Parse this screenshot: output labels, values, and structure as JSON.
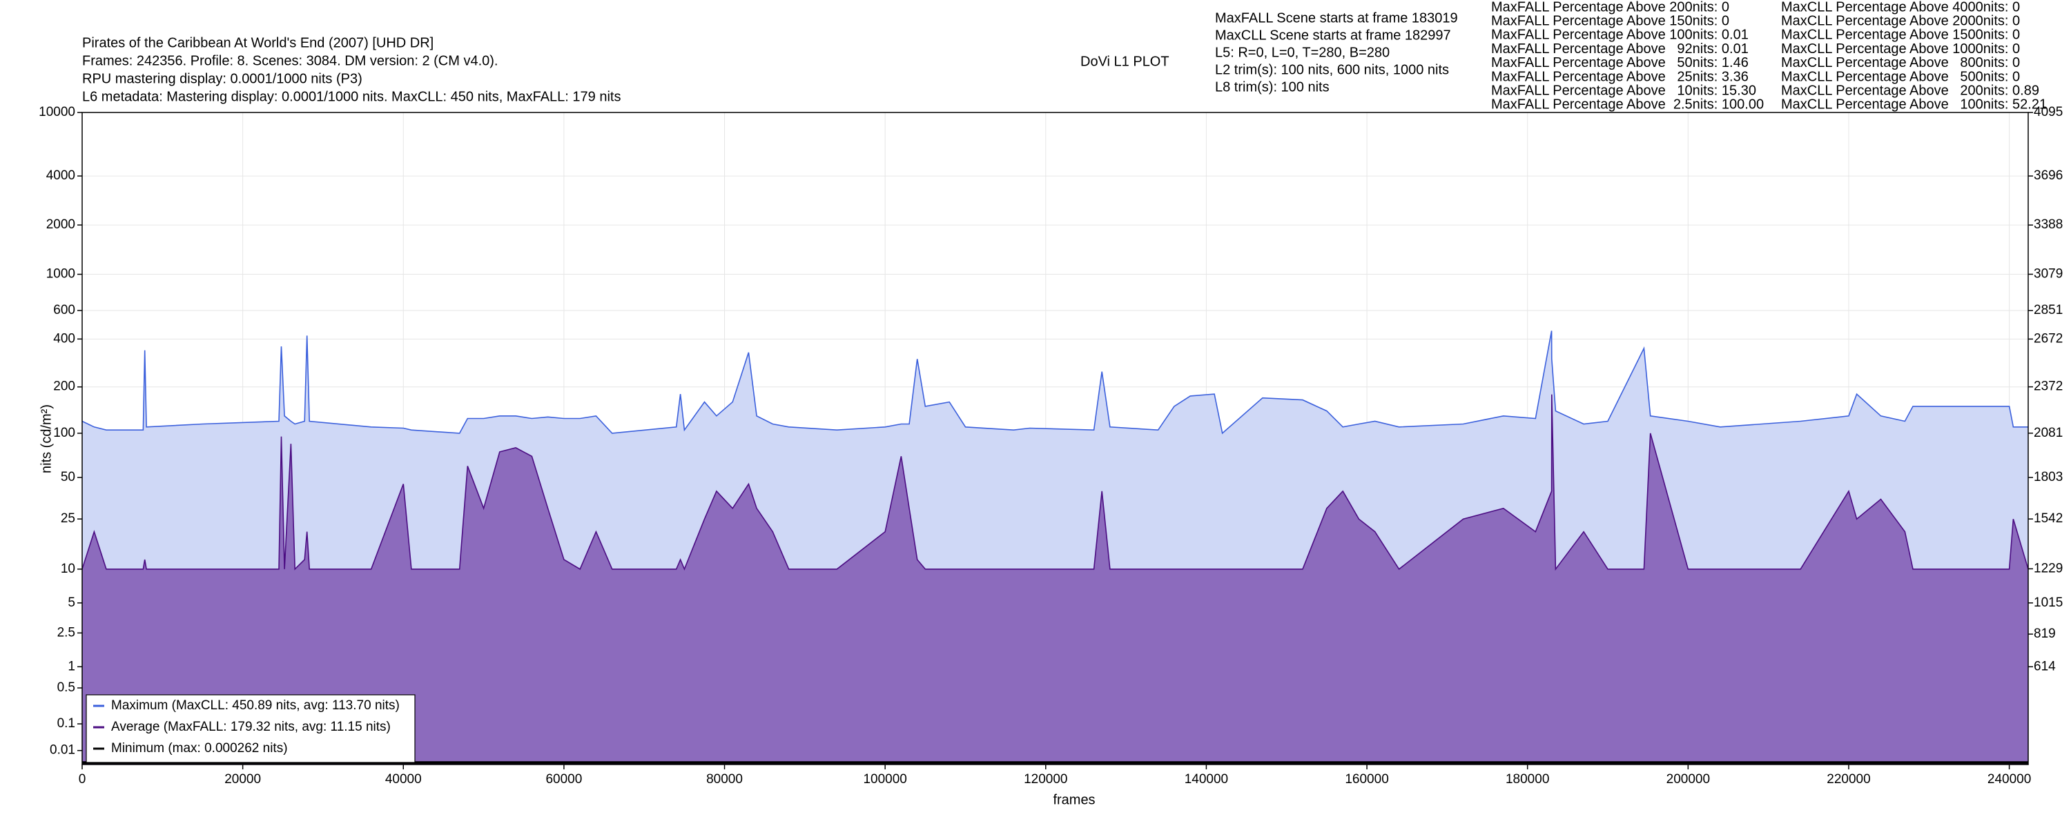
{
  "chart_data": {
    "type": "line",
    "title": "DoVi L1 PLOT",
    "info": [
      "Pirates of the Caribbean At World's End (2007) [UHD DR]",
      "Frames: 242356. Profile: 8. Scenes: 3084. DM version: 2 (CM v4.0).",
      "RPU mastering display: 0.0001/1000 nits  (P3)",
      "L6 metadata: Mastering display: 0.0001/1000 nits. MaxCLL: 450 nits, MaxFALL: 179 nits"
    ],
    "stats": [
      "MaxFALL Scene starts at frame 183019",
      "MaxCLL Scene starts at frame 182997",
      "L5: R=0, L=0, T=280, B=280",
      "L2 trim(s): 100 nits, 600 nits, 1000 nits",
      "L8 trim(s): 100 nits"
    ],
    "maxfall_percentages": [
      "MaxFALL Percentage Above 200nits: 0",
      "MaxFALL Percentage Above 150nits: 0",
      "MaxFALL Percentage Above 100nits: 0.01",
      "MaxFALL Percentage Above   92nits: 0.01",
      "MaxFALL Percentage Above   50nits: 1.46",
      "MaxFALL Percentage Above   25nits: 3.36",
      "MaxFALL Percentage Above   10nits: 15.30",
      "MaxFALL Percentage Above  2.5nits: 100.00"
    ],
    "maxcll_percentages": [
      "MaxCLL Percentage Above 4000nits: 0",
      "MaxCLL Percentage Above 2000nits: 0",
      "MaxCLL Percentage Above 1500nits: 0",
      "MaxCLL Percentage Above 1000nits: 0",
      "MaxCLL Percentage Above   800nits: 0",
      "MaxCLL Percentage Above   500nits: 0",
      "MaxCLL Percentage Above   200nits: 0.89",
      "MaxCLL Percentage Above   100nits: 52.21"
    ],
    "xlabel": "frames",
    "ylabel": "nits (cd/m²)",
    "yscale": "pq",
    "grid": true,
    "legend": "lower left",
    "xlim": [
      0,
      242356
    ],
    "xticks": [
      0,
      20000,
      40000,
      60000,
      80000,
      100000,
      120000,
      140000,
      160000,
      180000,
      200000,
      220000,
      240000
    ],
    "ylim": [
      0,
      10000
    ],
    "yticks": [
      0.01,
      0.1,
      0.5,
      1,
      2.5,
      5,
      10,
      25,
      50,
      100,
      200,
      400,
      600,
      1000,
      2000,
      4000,
      10000
    ],
    "y2lim": [
      0,
      4095
    ],
    "y2ticks": [
      614,
      819,
      1015,
      1229,
      1542,
      1803,
      2081,
      2372,
      2672,
      2851,
      3079,
      3388,
      3696,
      4095
    ],
    "x": [
      0,
      1500,
      3000,
      7600,
      7800,
      8000,
      15000,
      24500,
      24800,
      25200,
      26000,
      26500,
      27700,
      28000,
      28300,
      36000,
      40000,
      41000,
      47000,
      48000,
      50000,
      52000,
      54000,
      56000,
      58000,
      60000,
      62000,
      64000,
      66000,
      74000,
      74500,
      75000,
      77500,
      79000,
      81000,
      83000,
      84000,
      86000,
      88000,
      94000,
      100000,
      102000,
      103000,
      104000,
      105000,
      108000,
      110000,
      116000,
      118000,
      126000,
      127000,
      128000,
      134000,
      136000,
      138000,
      141000,
      142000,
      147000,
      152000,
      155000,
      157000,
      159000,
      161000,
      164000,
      172000,
      177000,
      181000,
      182997,
      183019,
      183500,
      187000,
      190000,
      194500,
      195300,
      200000,
      204000,
      214000,
      220000,
      221000,
      224000,
      227000,
      228000,
      240000,
      240500,
      242356
    ],
    "series": [
      {
        "name": "Maximum (MaxCLL: 450.89 nits, avg: 113.70 nits)",
        "color": "#3a5fdc",
        "fill": "#cfd8f6",
        "values": [
          120,
          110,
          105,
          105,
          340,
          110,
          115,
          120,
          360,
          130,
          120,
          115,
          120,
          420,
          120,
          110,
          108,
          105,
          100,
          125,
          125,
          130,
          130,
          125,
          128,
          125,
          125,
          130,
          100,
          110,
          180,
          105,
          160,
          130,
          160,
          330,
          130,
          115,
          110,
          105,
          110,
          115,
          115,
          300,
          150,
          160,
          110,
          105,
          108,
          105,
          250,
          110,
          105,
          150,
          175,
          180,
          100,
          170,
          165,
          140,
          110,
          115,
          120,
          110,
          115,
          130,
          125,
          450,
          300,
          140,
          115,
          120,
          350,
          130,
          120,
          110,
          120,
          130,
          180,
          130,
          120,
          150,
          150,
          110,
          110
        ]
      },
      {
        "name": "Average (MaxFALL: 179.32 nits, avg: 11.15 nits)",
        "color": "#4b0c82",
        "fill": "#8c6bbd",
        "values": [
          10,
          20,
          10,
          10,
          12,
          10,
          10,
          10,
          95,
          10,
          85,
          10,
          12,
          20,
          10,
          10,
          45,
          10,
          10,
          60,
          30,
          75,
          80,
          70,
          30,
          12,
          10,
          20,
          10,
          10,
          12,
          10,
          25,
          40,
          30,
          45,
          30,
          20,
          10,
          10,
          20,
          70,
          30,
          12,
          10,
          10,
          10,
          10,
          10,
          10,
          40,
          10,
          10,
          10,
          10,
          10,
          10,
          10,
          10,
          30,
          40,
          25,
          20,
          10,
          25,
          30,
          20,
          40,
          179,
          10,
          20,
          10,
          10,
          100,
          10,
          10,
          10,
          40,
          25,
          35,
          20,
          10,
          10,
          25,
          10
        ]
      },
      {
        "name": "Minimum (max: 0.000262 nits)",
        "color": "#000000",
        "x": [
          0,
          242356
        ],
        "values": [
          0.000262,
          0.000262
        ]
      }
    ]
  }
}
